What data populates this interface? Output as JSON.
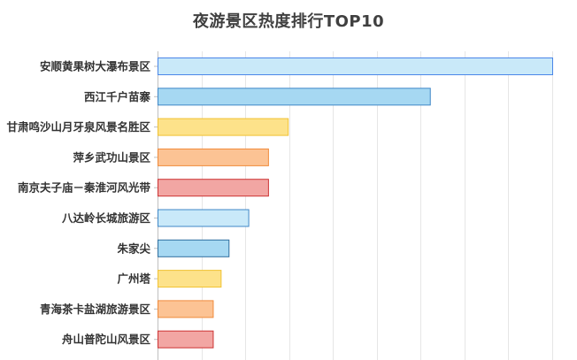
{
  "chart_data": {
    "type": "bar",
    "orientation": "horizontal",
    "title": "夜游景区热度排行TOP10",
    "categories": [
      "安顺黄果树大瀑布景区",
      "西江千户苗寨",
      "甘肃鸣沙山月牙泉风景名胜区",
      "萍乡武功山景区",
      "南京夫子庙－秦淮河风光带",
      "八达岭长城旅游区",
      "朱家尖",
      "广州塔",
      "青海茶卡盐湖旅游景区",
      "舟山普陀山风景区"
    ],
    "values": [
      100,
      69,
      33,
      28,
      28,
      23,
      18,
      16,
      14,
      14
    ],
    "xlim": [
      0,
      100
    ],
    "xlabel": "",
    "ylabel": "",
    "grid": true,
    "tick_labels_shown": false,
    "legend": "none",
    "bar_colors": [
      {
        "fill": "#c9e9f9",
        "stroke": "#4a86e8"
      },
      {
        "fill": "#a6d8f2",
        "stroke": "#3f87c7"
      },
      {
        "fill": "#fde28a",
        "stroke": "#f1c232"
      },
      {
        "fill": "#fcc394",
        "stroke": "#f08a3a"
      },
      {
        "fill": "#f2a6a3",
        "stroke": "#cc3333"
      },
      {
        "fill": "#c9e9f9",
        "stroke": "#3f87c7"
      },
      {
        "fill": "#a6d8f2",
        "stroke": "#2f6e9e"
      },
      {
        "fill": "#fde28a",
        "stroke": "#f1c232"
      },
      {
        "fill": "#fcc394",
        "stroke": "#f08a3a"
      },
      {
        "fill": "#f2a6a3",
        "stroke": "#cc3333"
      }
    ]
  }
}
